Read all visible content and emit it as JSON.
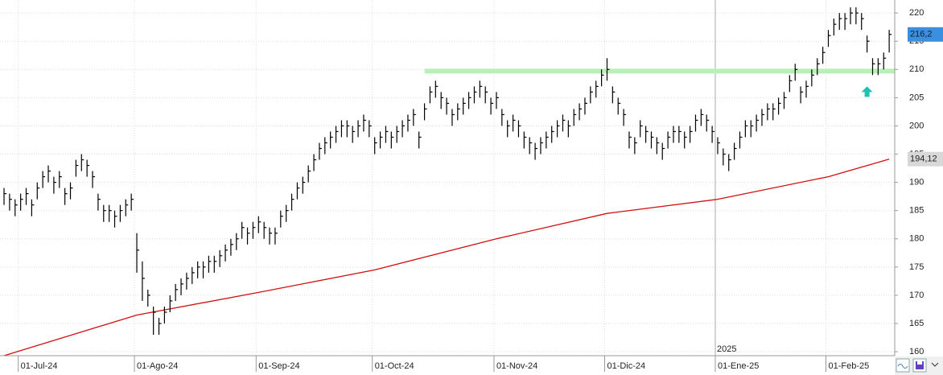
{
  "chart_data": {
    "type": "ohlc",
    "high": [
      189,
      188,
      187,
      188,
      189,
      187,
      190,
      192,
      193,
      191,
      192,
      189,
      190,
      194,
      195,
      194,
      192,
      188,
      186,
      186,
      185,
      186,
      187,
      188,
      181,
      176,
      171,
      168,
      166,
      168,
      170,
      172,
      173,
      174,
      175,
      176,
      176,
      177,
      177,
      178,
      179,
      180,
      181,
      183,
      182,
      183,
      184,
      183,
      182,
      182,
      185,
      186,
      188,
      190,
      191,
      193,
      195,
      197,
      198,
      199,
      200,
      201,
      201,
      200,
      201,
      202,
      201,
      198,
      199,
      200,
      199,
      200,
      201,
      202,
      203,
      199,
      204,
      207,
      208,
      206,
      205,
      203,
      204,
      205,
      206,
      207,
      208,
      207,
      205,
      206,
      203,
      201,
      202,
      201,
      199,
      198,
      197,
      198,
      199,
      200,
      201,
      202,
      201,
      203,
      204,
      205,
      207,
      208,
      210,
      212,
      207,
      205,
      203,
      199,
      198,
      201,
      200,
      199,
      198,
      197,
      199,
      200,
      200,
      199,
      200,
      202,
      203,
      202,
      200,
      198,
      196,
      195,
      197,
      199,
      201,
      201,
      202,
      203,
      204,
      204,
      205,
      206,
      209,
      211,
      207,
      208,
      210,
      212,
      214,
      217,
      219,
      220,
      220,
      221,
      221,
      220,
      216,
      212,
      212,
      213,
      217
    ],
    "low": [
      186,
      185,
      184,
      185,
      186,
      184,
      187,
      189,
      190,
      188,
      189,
      186,
      187,
      191,
      192,
      191,
      189,
      185,
      183,
      183,
      182,
      183,
      184,
      185,
      174,
      169,
      168,
      163,
      163,
      165,
      167,
      169,
      170,
      171,
      172,
      173,
      173,
      174,
      174,
      175,
      176,
      177,
      178,
      180,
      179,
      180,
      181,
      180,
      179,
      179,
      182,
      183,
      185,
      187,
      188,
      190,
      192,
      194,
      195,
      196,
      197,
      198,
      198,
      197,
      198,
      199,
      198,
      195,
      196,
      197,
      196,
      197,
      198,
      199,
      200,
      196,
      201,
      204,
      205,
      203,
      202,
      200,
      201,
      202,
      203,
      204,
      205,
      204,
      202,
      203,
      200,
      198,
      199,
      198,
      196,
      195,
      194,
      195,
      196,
      197,
      198,
      199,
      198,
      200,
      201,
      202,
      204,
      205,
      207,
      208,
      204,
      202,
      200,
      196,
      195,
      198,
      197,
      196,
      195,
      194,
      196,
      197,
      197,
      196,
      197,
      199,
      200,
      199,
      197,
      195,
      193,
      192,
      194,
      196,
      198,
      198,
      199,
      200,
      201,
      201,
      202,
      203,
      206,
      208,
      204,
      205,
      207,
      209,
      211,
      214,
      216,
      217,
      217,
      218,
      218,
      217,
      213,
      209,
      209,
      210,
      213
    ],
    "close": [
      188,
      187,
      186,
      187,
      188,
      186,
      189,
      191,
      192,
      190,
      191,
      188,
      189,
      193,
      194,
      193,
      191,
      187,
      185,
      185,
      184,
      185,
      186,
      187,
      178,
      173,
      170,
      167,
      165,
      167,
      169,
      171,
      172,
      173,
      174,
      175,
      175,
      176,
      176,
      177,
      178,
      179,
      180,
      182,
      181,
      182,
      183,
      182,
      181,
      181,
      184,
      185,
      187,
      189,
      190,
      192,
      194,
      196,
      197,
      198,
      199,
      200,
      200,
      199,
      200,
      201,
      200,
      197,
      198,
      199,
      198,
      199,
      200,
      201,
      202,
      198,
      203,
      206,
      207,
      205,
      204,
      202,
      203,
      204,
      205,
      206,
      207,
      206,
      204,
      205,
      202,
      200,
      201,
      200,
      198,
      197,
      196,
      197,
      198,
      199,
      200,
      201,
      200,
      202,
      203,
      204,
      206,
      207,
      209,
      210,
      206,
      204,
      202,
      198,
      197,
      200,
      199,
      198,
      197,
      196,
      198,
      199,
      199,
      198,
      199,
      201,
      202,
      201,
      199,
      197,
      195,
      194,
      196,
      198,
      200,
      200,
      201,
      202,
      203,
      203,
      204,
      205,
      208,
      210,
      206,
      207,
      209,
      211,
      213,
      216,
      218,
      219,
      219,
      220,
      220,
      219,
      215,
      211,
      211,
      212,
      216.2
    ],
    "color": "#000000",
    "moving_average": {
      "x": [
        0,
        24,
        46,
        67,
        89,
        109,
        129,
        149,
        160
      ],
      "values": [
        159.3,
        166.5,
        170.5,
        174.5,
        180,
        184.5,
        187,
        191,
        194.12
      ],
      "color": "#d01010"
    },
    "hline": {
      "value": 209.7,
      "x": [
        76,
        161
      ],
      "color": "#b8f0b8"
    },
    "marker": {
      "x": 156,
      "value": 206,
      "color": "#20c0b0"
    },
    "xlim": [
      -0.73,
      161
    ],
    "ylim": [
      159.3,
      222.3
    ],
    "xticks": [
      {
        "value": 3,
        "label": "01-Jul-24"
      },
      {
        "value": 24,
        "label": "01-Ago-24"
      },
      {
        "value": 46,
        "label": "01-Sep-24"
      },
      {
        "value": 67,
        "label": "01-Oct-24"
      },
      {
        "value": 89,
        "label": "01-Nov-24"
      },
      {
        "value": 109,
        "label": "01-Dic-24"
      },
      {
        "value": 129,
        "label": "01-Ene-25"
      },
      {
        "value": 149,
        "label": "01-Feb-25"
      }
    ],
    "yticks": [
      160,
      165,
      170,
      175,
      180,
      185,
      190,
      195,
      200,
      205,
      210,
      215,
      220
    ],
    "year_label": {
      "value": 129,
      "label": "2025"
    },
    "price_label": {
      "value": 216.2,
      "label": "216,2",
      "color": "#3a8fe0"
    },
    "ma_label": {
      "value": 194.12,
      "label": "194,12",
      "color": "#d8d8d8"
    },
    "grid": true
  }
}
